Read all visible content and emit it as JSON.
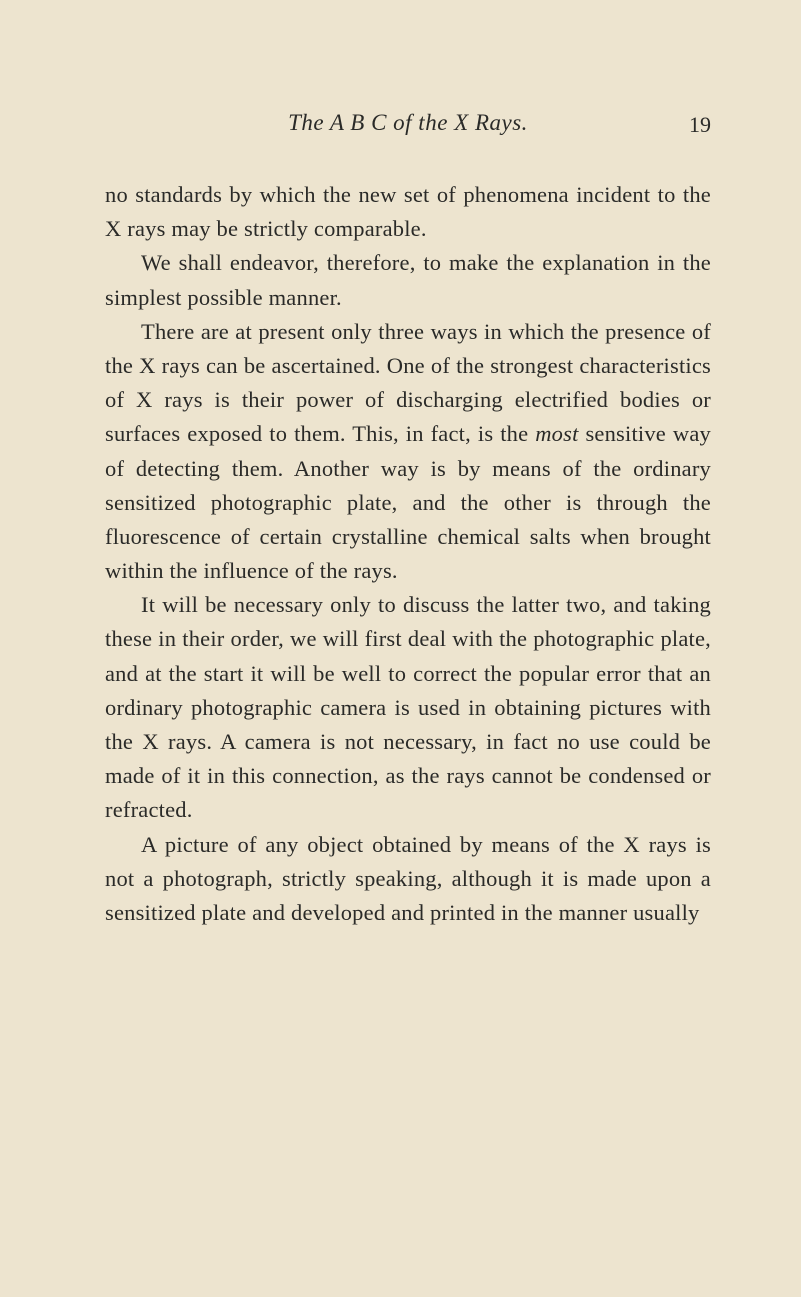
{
  "page": {
    "running_title": "The A B C of the X Rays.",
    "page_number": "19",
    "background_color": "#ede4cf",
    "text_color": "#2a2a28",
    "body_fontsize": 22.5,
    "title_fontsize": 23,
    "line_height": 1.52,
    "paragraphs": [
      {
        "indent": false,
        "text": "no standards by which the new set of phenomena incident to the X rays may be strictly comparable."
      },
      {
        "indent": true,
        "text": "We shall endeavor, therefore, to make the explanation in the simplest possible manner."
      },
      {
        "indent": true,
        "text_before_em": "There are at present only three ways in which the presence of the X rays can be ascertained. One of the strongest characteristics of X rays is their power of discharging electrified bodies or surfaces exposed to them. This, in fact, is the ",
        "em_word": "most",
        "text_after_em": " sensitive way of detecting them. Another way is by means of the ordinary sensitized photographic plate, and the other is through the fluorescence of certain crystalline chemical salts when brought within the influence of the rays."
      },
      {
        "indent": true,
        "text": "It will be necessary only to discuss the latter two, and taking these in their order, we will first deal with the photographic plate, and at the start it will be well to correct the popular error that an ordinary photographic camera is used in obtaining pictures with the X rays. A camera is not necessary, in fact no use could be made of it in this connection, as the rays cannot be condensed or refracted."
      },
      {
        "indent": true,
        "text": "A picture of any object obtained by means of the X rays is not a photograph, strictly speaking, although it is made upon a sensitized plate and developed and printed in the manner usually"
      }
    ]
  }
}
